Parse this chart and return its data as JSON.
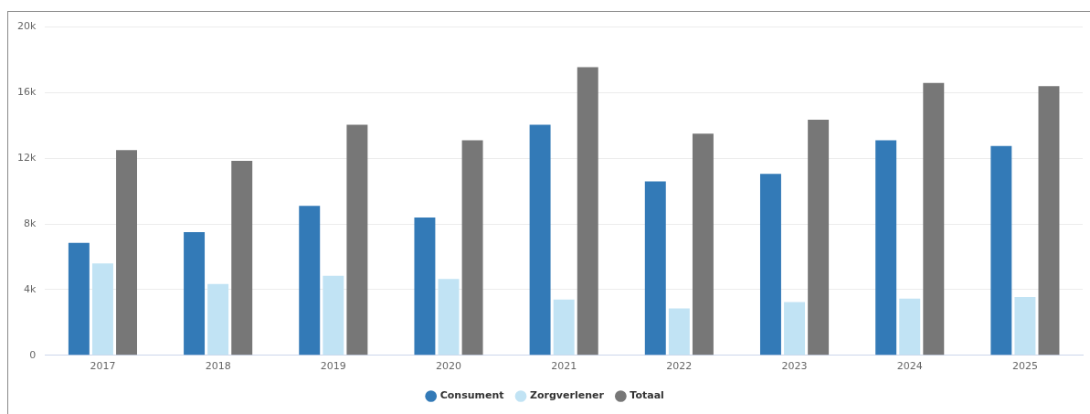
{
  "chart_data": {
    "type": "bar",
    "categories": [
      "2017",
      "2018",
      "2019",
      "2020",
      "2021",
      "2022",
      "2023",
      "2024",
      "2025"
    ],
    "series": [
      {
        "name": "Consument",
        "color": "#337ab7",
        "values": [
          6850,
          7500,
          9100,
          8400,
          14050,
          10600,
          11050,
          13100,
          12750
        ]
      },
      {
        "name": "Zorgverlener",
        "color": "#c1e3f4",
        "values": [
          5600,
          4350,
          4850,
          4650,
          3400,
          2850,
          3250,
          3450,
          3550
        ]
      },
      {
        "name": "Totaal",
        "color": "#777777",
        "values": [
          12500,
          11850,
          14050,
          13100,
          17550,
          13500,
          14350,
          16600,
          16400
        ]
      }
    ],
    "ylim": [
      0,
      20000
    ],
    "yticks": [
      {
        "value": 0,
        "label": "0"
      },
      {
        "value": 4000,
        "label": "4k"
      },
      {
        "value": 8000,
        "label": "8k"
      },
      {
        "value": 12000,
        "label": "12k"
      },
      {
        "value": 16000,
        "label": "16k"
      },
      {
        "value": 20000,
        "label": "20k"
      }
    ],
    "grid": "y",
    "legend": "bottom"
  }
}
